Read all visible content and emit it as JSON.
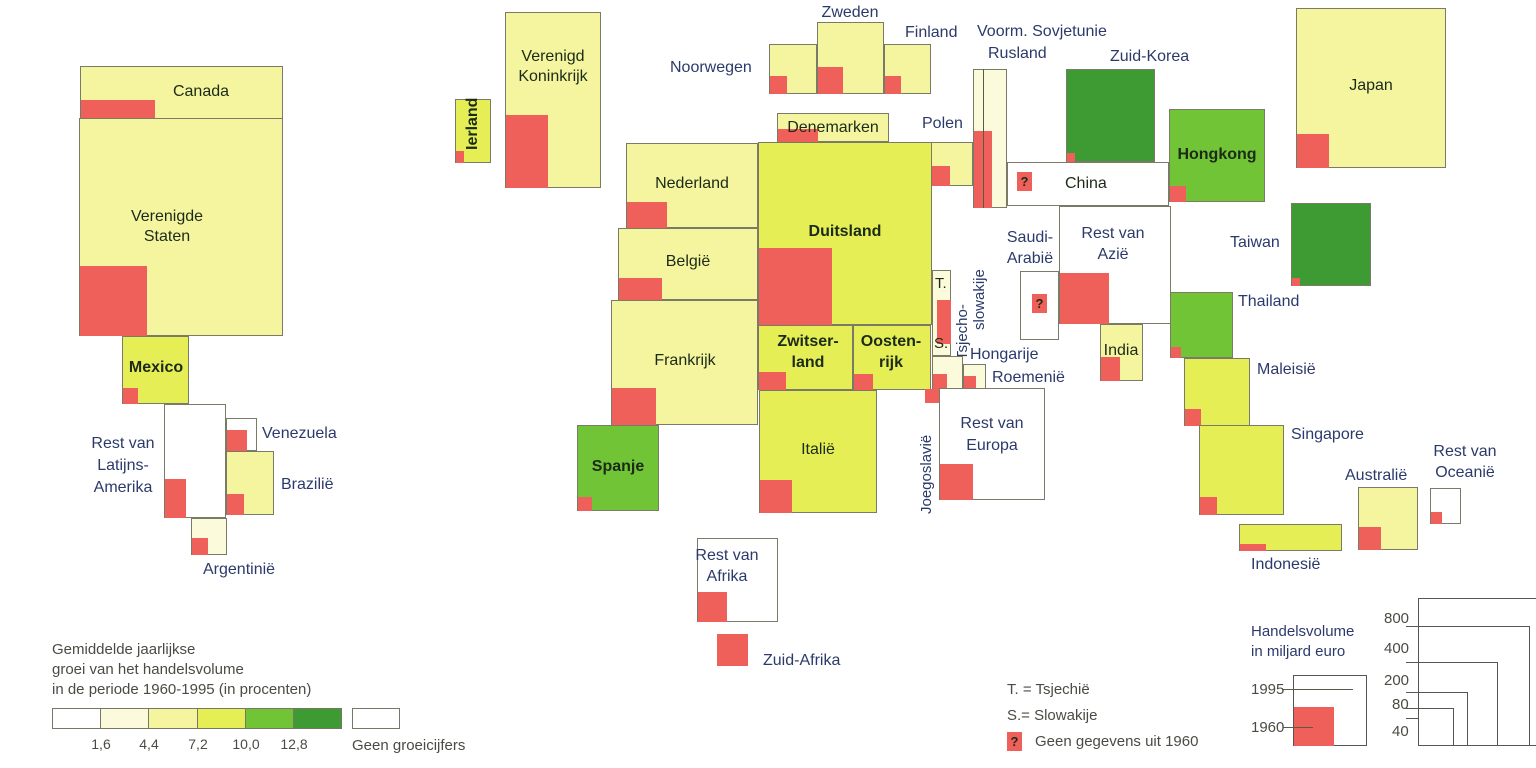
{
  "countries": {
    "canada": "Canada",
    "vs": [
      "Verenigde",
      "Staten"
    ],
    "mexico": "Mexico",
    "rest_latam": [
      "Rest van",
      "Latijns-",
      "Amerika"
    ],
    "venezuela": "Venezuela",
    "brazilie": "Brazilië",
    "argentinie": "Argentinië",
    "ierland": "Ierland",
    "vk": [
      "Verenigd",
      "Koninkrijk"
    ],
    "noorwegen": "Noorwegen",
    "zweden": "Zweden",
    "finland": "Finland",
    "sovjet": [
      "Voorm. Sovjetunie",
      "Rusland"
    ],
    "zuidkorea": "Zuid-Korea",
    "japan": "Japan",
    "denemarken": "Denemarken",
    "polen": "Polen",
    "nederland": "Nederland",
    "duitsland": "Duitsland",
    "belgie": "België",
    "frankrijk": "Frankrijk",
    "zwitserland": [
      "Zwitser-",
      "land"
    ],
    "oostenrijk": [
      "Oosten-",
      "rijk"
    ],
    "spanje": "Spanje",
    "italie": "Italië",
    "tsjecho": [
      "Tsjecho-",
      "slowakije"
    ],
    "t": "T.",
    "s": "S.",
    "hongarije": "Hongarije",
    "roemenie": "Roemenië",
    "joegoslavie": "Joegoslavië",
    "rest_europa": [
      "Rest van",
      "Europa"
    ],
    "china": "China",
    "saudi": [
      "Saudi-",
      "Arabië"
    ],
    "rest_azie": [
      "Rest van",
      "Azië"
    ],
    "india": "India",
    "hongkong": "Hongkong",
    "taiwan": "Taiwan",
    "thailand": "Thailand",
    "maleisie": "Maleisië",
    "singapore": "Singapore",
    "indonesie": "Indonesië",
    "australie": "Australië",
    "rest_oceanie": [
      "Rest van",
      "Oceanië"
    ],
    "rest_afrika": [
      "Rest van",
      "Afrika"
    ],
    "zuidafrika": "Zuid-Afrika",
    "unknown_mark": "?"
  },
  "legend": {
    "growth_title": [
      "Gemiddelde jaarlijkse",
      "groei van het handelsvolume",
      "in de periode 1960-1995 (in procenten)"
    ],
    "growth_ticks": [
      "1,6",
      "4,4",
      "7,2",
      "10,0",
      "12,8"
    ],
    "no_growth": "Geen groeicijfers",
    "abbr_t": "T. = Tsjechië",
    "abbr_s": "S.= Slowakije",
    "no_data": "Geen gegevens uit 1960",
    "volume_title": [
      "Handelsvolume",
      "in miljard euro"
    ],
    "year_1995": "1995",
    "year_1960": "1960",
    "scale_values": [
      "800",
      "400",
      "200",
      "80",
      "40"
    ]
  },
  "colors": {
    "class1": "#ffffff",
    "class2": "#fbfbdc",
    "class3": "#f4f59e",
    "class4": "#e5ef55",
    "class5": "#72c437",
    "class6": "#3e9a32",
    "value_1960": "#f0605a"
  }
}
